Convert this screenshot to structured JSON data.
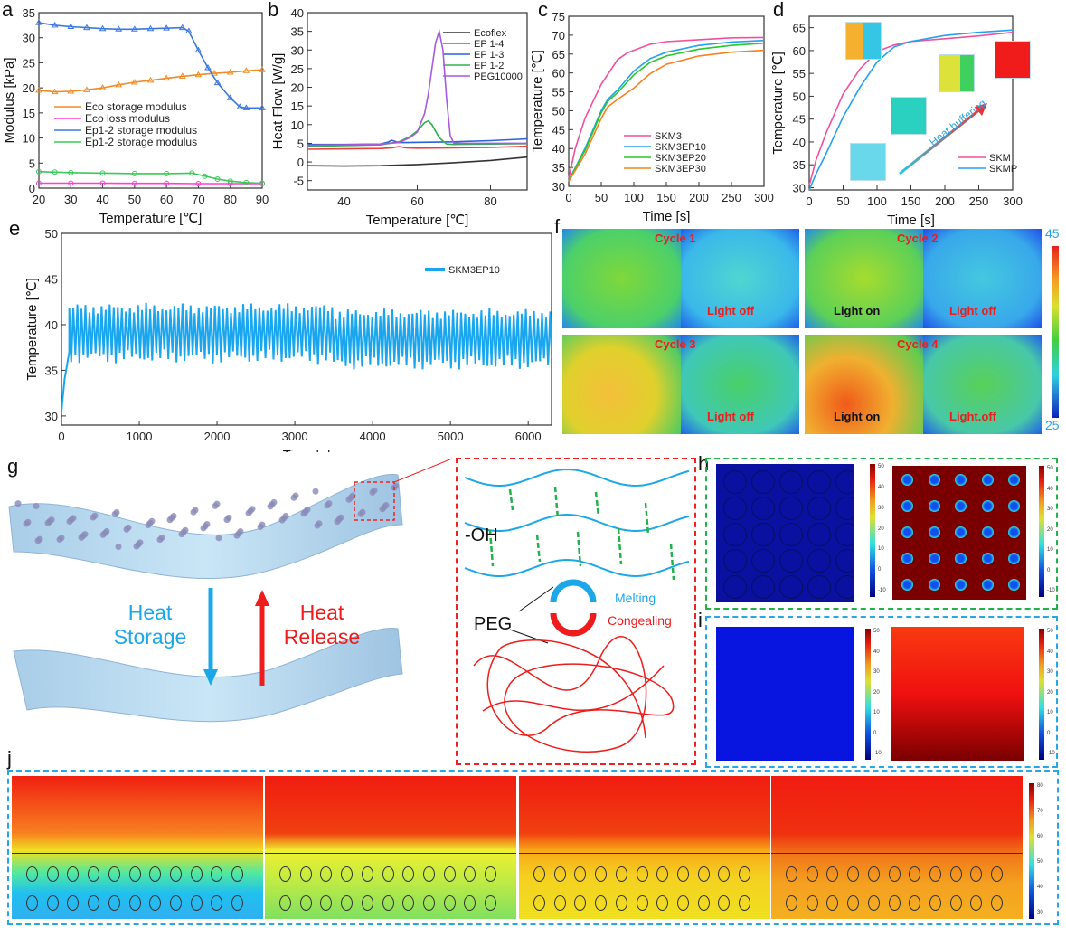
{
  "panel_letters": [
    "a",
    "b",
    "c",
    "d",
    "e",
    "f",
    "g",
    "h",
    "i",
    "j"
  ],
  "chart_data": [
    {
      "id": "a",
      "type": "line",
      "xlabel": "Temperature [℃]",
      "ylabel": "Modulus [kPa]",
      "xlim": [
        20,
        90
      ],
      "ylim": [
        0,
        35
      ],
      "xticks": [
        20,
        30,
        40,
        50,
        60,
        70,
        80,
        90
      ],
      "yticks": [
        0,
        5,
        10,
        15,
        20,
        25,
        30,
        35
      ],
      "legend_placement": "center-left",
      "grid": false,
      "series": [
        {
          "name": "Eco storage modulus",
          "color": "#f08a24",
          "marker": "triangle",
          "x": [
            20,
            25,
            30,
            35,
            40,
            45,
            50,
            55,
            60,
            65,
            70,
            75,
            80,
            85,
            90
          ],
          "y": [
            19.5,
            19.2,
            19.3,
            19.6,
            20.0,
            20.6,
            21.1,
            21.5,
            21.9,
            22.3,
            22.6,
            22.9,
            23.1,
            23.4,
            23.6
          ]
        },
        {
          "name": "Eco loss modulus",
          "color": "#ff3fd0",
          "marker": "circle",
          "x": [
            20,
            30,
            40,
            50,
            60,
            70,
            80,
            90
          ],
          "y": [
            1.0,
            1.0,
            1.0,
            0.95,
            0.95,
            0.9,
            0.9,
            0.9
          ]
        },
        {
          "name": "Ep1-2 storage modulus",
          "color": "#3a78e0",
          "marker": "triangle",
          "x": [
            20,
            25,
            30,
            35,
            40,
            45,
            50,
            55,
            60,
            65,
            67,
            70,
            73,
            76,
            80,
            83,
            85,
            90
          ],
          "y": [
            33.0,
            32.5,
            32.2,
            32.0,
            31.8,
            31.7,
            31.7,
            31.8,
            31.9,
            32.0,
            31.3,
            27.5,
            24.0,
            21.0,
            18.0,
            16.2,
            16.0,
            16.0
          ]
        },
        {
          "name": "Ep1-2 storage modulus",
          "color": "#3cc85a",
          "marker": "circle",
          "x": [
            20,
            25,
            30,
            40,
            50,
            60,
            68,
            72,
            76,
            80,
            85,
            90
          ],
          "y": [
            3.3,
            3.2,
            3.1,
            3.0,
            2.9,
            2.9,
            3.0,
            2.4,
            1.8,
            1.4,
            1.1,
            1.0
          ]
        }
      ]
    },
    {
      "id": "b",
      "type": "line",
      "xlabel": "Temperature [℃]",
      "ylabel": "Heat Flow [W/g]",
      "xlim": [
        30,
        90
      ],
      "ylim": [
        -7.5,
        40
      ],
      "xticks": [
        40,
        60,
        80
      ],
      "yticks": [
        -5,
        0,
        5,
        10,
        15,
        20,
        25,
        30,
        35,
        40
      ],
      "legend_placement": "top-right",
      "grid": false,
      "series": [
        {
          "name": "Ecoflex",
          "color": "#333333",
          "x": [
            30,
            40,
            50,
            60,
            70,
            80,
            90
          ],
          "y": [
            -1.0,
            -1.1,
            -1.0,
            -0.7,
            -0.2,
            0.4,
            1.3
          ]
        },
        {
          "name": "EP 1-4",
          "color": "#f03c3c",
          "x": [
            30,
            40,
            50,
            53,
            55,
            57,
            60,
            70,
            80,
            90
          ],
          "y": [
            3.4,
            3.5,
            3.6,
            3.8,
            4.1,
            3.8,
            3.7,
            3.8,
            3.9,
            4.2
          ]
        },
        {
          "name": "EP 1-3",
          "color": "#2a62d8",
          "x": [
            30,
            40,
            50,
            52,
            53,
            55,
            57,
            70,
            80,
            90
          ],
          "y": [
            4.7,
            4.7,
            4.8,
            5.3,
            5.8,
            5.2,
            5.2,
            5.4,
            5.7,
            6.2
          ]
        },
        {
          "name": "EP 1-2",
          "color": "#2fb24c",
          "x": [
            30,
            40,
            50,
            55,
            58,
            60,
            62,
            63,
            64,
            66,
            68,
            70,
            90
          ],
          "y": [
            4.2,
            4.4,
            4.6,
            5.4,
            6.8,
            8.3,
            10.5,
            11.0,
            10.0,
            6.5,
            4.8,
            4.7,
            4.9
          ]
        },
        {
          "name": "PEG10000",
          "color": "#a55ae0",
          "x": [
            30,
            40,
            50,
            55,
            58,
            60,
            62,
            63,
            64,
            65,
            66,
            67,
            68,
            69,
            70,
            90
          ],
          "y": [
            4.5,
            4.6,
            4.8,
            5.2,
            6.5,
            8.0,
            13.0,
            18.0,
            25.0,
            32.0,
            35.0,
            30.0,
            17.0,
            7.0,
            5.0,
            5.0
          ]
        }
      ]
    },
    {
      "id": "c",
      "type": "line",
      "xlabel": "Time [s]",
      "ylabel": "Temperature [℃]",
      "xlim": [
        0,
        300
      ],
      "ylim": [
        30,
        75
      ],
      "xticks": [
        0,
        50,
        100,
        150,
        200,
        250,
        300
      ],
      "yticks": [
        30,
        35,
        40,
        45,
        50,
        55,
        60,
        65,
        70,
        75
      ],
      "legend_placement": "center-right",
      "grid": false,
      "series": [
        {
          "name": "SKM3",
          "color": "#f0509c",
          "x": [
            0,
            10,
            25,
            50,
            75,
            90,
            100,
            125,
            150,
            200,
            250,
            300
          ],
          "y": [
            32,
            40,
            48,
            57,
            63.5,
            65.3,
            66,
            67.6,
            68.3,
            68.8,
            69.3,
            69.4
          ]
        },
        {
          "name": "SKM3EP10",
          "color": "#26a0f0",
          "x": [
            0,
            25,
            50,
            60,
            75,
            100,
            125,
            150,
            200,
            250,
            300
          ],
          "y": [
            31.5,
            40,
            50,
            53,
            55.5,
            60.5,
            63.8,
            65.5,
            67.3,
            68.2,
            68.6
          ]
        },
        {
          "name": "SKM3EP20",
          "color": "#28c828",
          "x": [
            0,
            25,
            50,
            60,
            75,
            100,
            125,
            150,
            200,
            250,
            300
          ],
          "y": [
            31.5,
            39.5,
            49.5,
            52.5,
            54.8,
            59.5,
            62.8,
            64.5,
            66.3,
            67.3,
            67.9
          ]
        },
        {
          "name": "SKM3EP30",
          "color": "#f5821e",
          "x": [
            0,
            25,
            50,
            60,
            75,
            100,
            125,
            150,
            200,
            250,
            300
          ],
          "y": [
            31.3,
            38.5,
            48,
            51,
            53,
            56,
            59.8,
            62.3,
            64.5,
            65.5,
            66
          ]
        }
      ]
    },
    {
      "id": "d",
      "type": "line",
      "xlabel": "Time [s]",
      "ylabel": "Temperature [℃]",
      "xlim": [
        0,
        300
      ],
      "ylim": [
        29.5,
        67.5
      ],
      "xticks": [
        0,
        50,
        100,
        150,
        200,
        250,
        300
      ],
      "yticks": [
        30,
        35,
        40,
        45,
        50,
        55,
        60,
        65
      ],
      "legend_placement": "bottom-right",
      "grid": false,
      "annotation": "Heat buffering",
      "series": [
        {
          "name": "SKM",
          "color": "#f0509c",
          "x": [
            0,
            10,
            25,
            50,
            75,
            100,
            125,
            150,
            200,
            250,
            300
          ],
          "y": [
            30.5,
            36,
            42,
            50.5,
            56,
            59.8,
            61.2,
            62,
            62.6,
            63.2,
            64
          ]
        },
        {
          "name": "SKMP",
          "color": "#26a0f0",
          "x": [
            0,
            10,
            25,
            50,
            75,
            100,
            125,
            150,
            200,
            250,
            300
          ],
          "y": [
            29.5,
            33,
            37.5,
            45.5,
            52,
            57.5,
            60.8,
            62,
            63.3,
            64,
            64.5
          ]
        }
      ]
    },
    {
      "id": "e",
      "type": "line",
      "xlabel": "Time [s]",
      "ylabel": "Temperature [℃]",
      "xlim": [
        0,
        6300
      ],
      "ylim": [
        29,
        50
      ],
      "xticks": [
        0,
        1000,
        2000,
        3000,
        4000,
        5000,
        6000
      ],
      "yticks": [
        30,
        35,
        40,
        45,
        50
      ],
      "legend_placement": "top-right",
      "grid": false,
      "series": [
        {
          "name": "SKM3EP10",
          "color": "#1aa6ee",
          "start_value": 30.5,
          "oscillation_period_s": 52,
          "segments": [
            {
              "x_from": 100,
              "x_to": 3500,
              "min": 36.5,
              "max": 41.8
            },
            {
              "x_from": 3500,
              "x_to": 6300,
              "min": 35.8,
              "max": 41.2
            }
          ]
        }
      ]
    }
  ],
  "f": {
    "cycles": [
      "Cycle 1",
      "Cycle 2",
      "Cycle 3",
      "Cycle 4"
    ],
    "left_labels": [
      "",
      "Light on",
      "",
      "Light on"
    ],
    "right_labels": [
      "Light off",
      "Light off",
      "Light off",
      "Light.off"
    ],
    "colorbar_max": "45",
    "colorbar_min": "25"
  },
  "g": {
    "heat_storage": [
      "Heat",
      "Storage"
    ],
    "heat_release": [
      "Heat",
      "Release"
    ],
    "oh_label": "-OH",
    "peg_label": "PEG",
    "melting": "Melting",
    "congealing": "Congealing"
  },
  "colorbar_hi_ticks": [
    "50",
    "40",
    "30",
    "20",
    "10",
    "0",
    "-10"
  ],
  "colorbar_j_ticks": [
    "80",
    "70",
    "60",
    "50",
    "40",
    "30"
  ],
  "colors": {
    "green_box": "#22b24c",
    "blue_box": "#27a7e8",
    "red_box": "#ee2222",
    "cyan_text": "#1ca8e8",
    "red_text": "#ee1c1c"
  }
}
